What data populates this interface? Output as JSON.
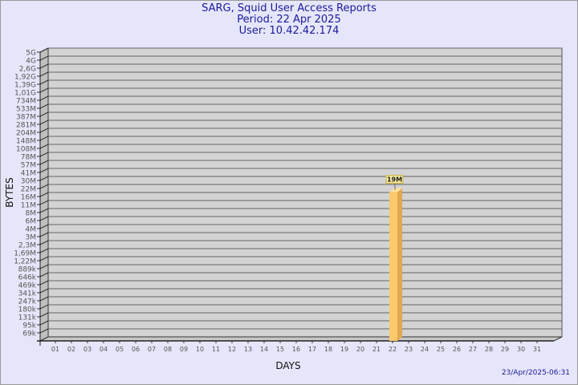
{
  "chart_data": {
    "type": "bar",
    "title": [
      "SARG, Squid User Access Reports",
      "Period: 22 Apr 2025",
      "User: 10.42.42.174"
    ],
    "xlabel": "DAYS",
    "ylabel": "BYTES",
    "y_scale": "log",
    "grid": true,
    "y_ticks": [
      "5G",
      "4G",
      "2,6G",
      "1,92G",
      "1,39G",
      "1,01G",
      "734M",
      "533M",
      "387M",
      "281M",
      "204M",
      "148M",
      "108M",
      "78M",
      "57M",
      "41M",
      "30M",
      "22M",
      "16M",
      "11M",
      "8M",
      "6M",
      "4M",
      "3M",
      "2,3M",
      "1,69M",
      "1,22M",
      "889k",
      "646k",
      "469k",
      "341k",
      "247k",
      "180k",
      "131k",
      "95k",
      "69k"
    ],
    "categories": [
      "01",
      "02",
      "03",
      "04",
      "05",
      "06",
      "07",
      "08",
      "09",
      "10",
      "11",
      "12",
      "13",
      "14",
      "15",
      "16",
      "17",
      "18",
      "19",
      "20",
      "21",
      "22",
      "23",
      "24",
      "25",
      "26",
      "27",
      "28",
      "29",
      "30",
      "31"
    ],
    "bars": [
      {
        "day": "22",
        "value": "19M",
        "label": "19M"
      }
    ],
    "colors": {
      "bar": "#ffc86a",
      "bar_side": "#e0a850",
      "bar_top": "#ffe29a",
      "plot": "#d3d3d3",
      "background": "#e6e6fa",
      "title": "#1a1a9a"
    }
  },
  "timestamp": "23/Apr/2025-06:31"
}
